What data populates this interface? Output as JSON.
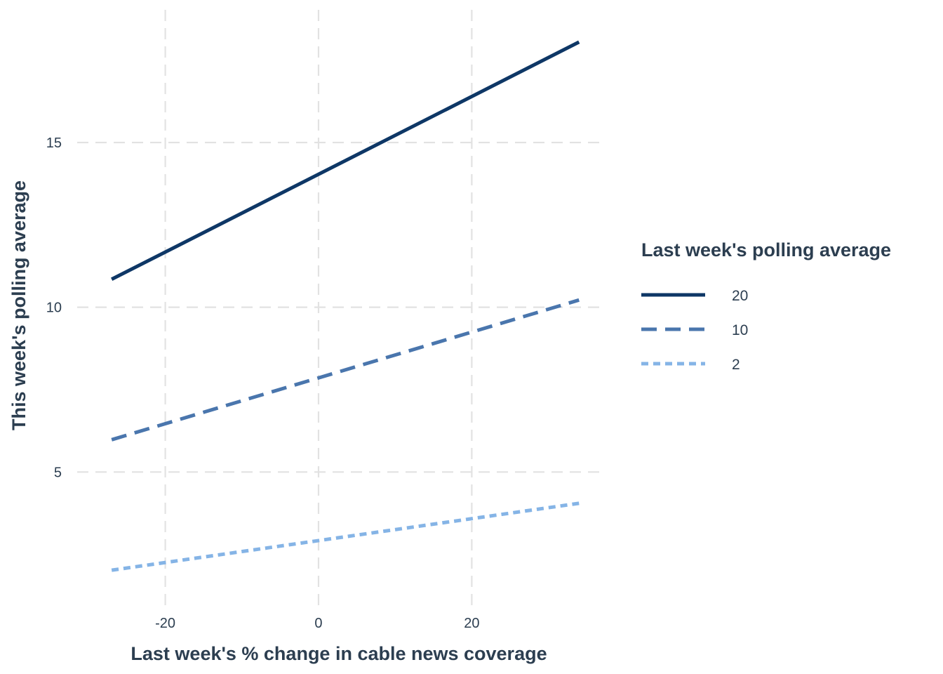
{
  "chart_data": {
    "type": "line",
    "title": "",
    "xlabel": "Last week's % change in cable news coverage",
    "ylabel": "This week's polling average",
    "xlim": [
      -31.5,
      37
    ],
    "ylim": [
      1.0,
      18.9
    ],
    "x_ticks": [
      -20,
      0,
      20
    ],
    "y_ticks": [
      5,
      10,
      15
    ],
    "grid": true,
    "legend": {
      "title": "Last week's polling average",
      "position": "right"
    },
    "series": [
      {
        "name": "20",
        "color": "#0e3766",
        "style": "solid",
        "x": [
          -27,
          34
        ],
        "y": [
          10.85,
          18.05
        ]
      },
      {
        "name": "10",
        "color": "#4a76ad",
        "style": "dashed",
        "x": [
          -27,
          34
        ],
        "y": [
          5.98,
          10.22
        ]
      },
      {
        "name": "2",
        "color": "#85b4e6",
        "style": "dotted",
        "x": [
          -27,
          34
        ],
        "y": [
          2.02,
          4.05
        ]
      }
    ]
  }
}
